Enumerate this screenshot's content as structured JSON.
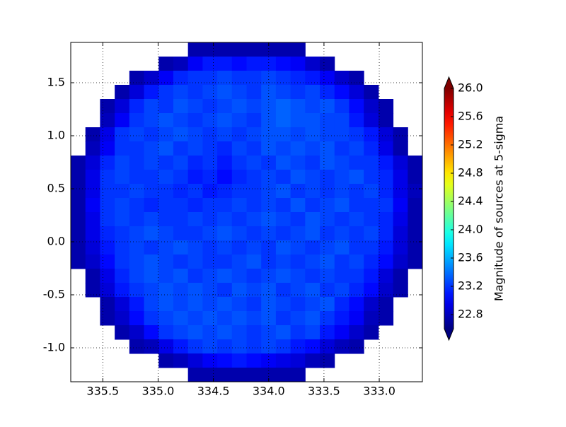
{
  "chart_data": {
    "type": "heatmap",
    "colormap": "jet",
    "grid": true,
    "xlim": [
      335.79,
      332.61
    ],
    "ylim": [
      1.88,
      -1.32
    ],
    "xticks": [
      335.5,
      {
        "value": 335,
        "label": "335.0"
      },
      334.5,
      {
        "value": 334,
        "label": "334.0"
      },
      333.5,
      {
        "value": 333,
        "label": "333.0"
      }
    ],
    "yticks": [
      1.5,
      {
        "value": 1,
        "label": "1.0"
      },
      0.5,
      {
        "value": 0,
        "label": "0.0"
      },
      -0.5,
      {
        "value": -1,
        "label": "-1.0"
      }
    ],
    "colorbar": {
      "label": "Magnitude of sources at 5-sigma",
      "clim": [
        22.6,
        26.0
      ],
      "extend": "both",
      "ticks": [
        22.8,
        23.2,
        23.6,
        {
          "value": 24,
          "label": "24.0"
        },
        24.4,
        24.8,
        25.2,
        25.6,
        {
          "value": 26,
          "label": "26.0"
        }
      ]
    },
    "values": [
      [
        null,
        null,
        null,
        null,
        null,
        null,
        null,
        null,
        22.75,
        22.75,
        22.75,
        22.75,
        22.75,
        22.75,
        22.75,
        22.75,
        null,
        null,
        null,
        null,
        null,
        null,
        null,
        null
      ],
      [
        null,
        null,
        null,
        null,
        null,
        null,
        22.75,
        22.8,
        23.0,
        23.1,
        23.1,
        23.05,
        23.1,
        23.1,
        23.05,
        23.0,
        22.85,
        22.75,
        null,
        null,
        null,
        null,
        null,
        null
      ],
      [
        null,
        null,
        null,
        null,
        22.75,
        22.85,
        23.0,
        23.15,
        23.2,
        23.2,
        23.25,
        23.2,
        23.2,
        23.25,
        23.2,
        23.15,
        23.1,
        23.0,
        22.85,
        22.75,
        null,
        null,
        null,
        null
      ],
      [
        null,
        null,
        null,
        22.75,
        22.9,
        23.1,
        23.2,
        23.25,
        23.2,
        23.25,
        23.3,
        23.25,
        23.2,
        23.3,
        23.25,
        23.2,
        23.25,
        23.15,
        23.05,
        22.9,
        22.75,
        null,
        null,
        null
      ],
      [
        null,
        null,
        22.75,
        22.9,
        23.15,
        23.25,
        23.2,
        23.3,
        23.25,
        23.2,
        23.25,
        23.3,
        23.25,
        23.3,
        23.35,
        23.3,
        23.25,
        23.3,
        23.2,
        23.05,
        22.85,
        22.75,
        null,
        null
      ],
      [
        null,
        null,
        22.8,
        23.0,
        23.2,
        23.25,
        23.3,
        23.25,
        23.2,
        23.25,
        23.3,
        23.25,
        23.2,
        23.3,
        23.35,
        23.3,
        23.3,
        23.25,
        23.25,
        23.1,
        22.9,
        22.75,
        null,
        null
      ],
      [
        null,
        22.75,
        22.95,
        23.2,
        23.25,
        23.2,
        23.25,
        23.3,
        23.25,
        23.2,
        23.25,
        23.2,
        23.25,
        23.3,
        23.3,
        23.25,
        23.3,
        23.25,
        23.25,
        23.2,
        23.1,
        22.9,
        22.75,
        null
      ],
      [
        null,
        22.8,
        23.0,
        23.2,
        23.2,
        23.25,
        23.3,
        23.2,
        23.25,
        23.2,
        23.15,
        23.25,
        23.2,
        23.3,
        23.25,
        23.3,
        23.25,
        23.3,
        23.2,
        23.25,
        23.15,
        22.95,
        22.75,
        null
      ],
      [
        22.75,
        22.9,
        23.15,
        23.25,
        23.2,
        23.25,
        23.2,
        23.25,
        23.15,
        23.2,
        23.1,
        23.2,
        23.25,
        23.2,
        23.3,
        23.25,
        23.2,
        23.3,
        23.25,
        23.2,
        23.2,
        23.1,
        22.9,
        22.75
      ],
      [
        22.75,
        22.95,
        23.2,
        23.25,
        23.2,
        23.2,
        23.25,
        23.2,
        23.1,
        23.15,
        23.05,
        23.15,
        23.2,
        23.25,
        23.2,
        23.3,
        23.25,
        23.2,
        23.25,
        23.3,
        23.2,
        23.15,
        22.95,
        22.75
      ],
      [
        22.75,
        22.95,
        23.2,
        23.2,
        23.25,
        23.2,
        23.2,
        23.15,
        23.2,
        23.1,
        23.15,
        23.2,
        23.2,
        23.25,
        23.3,
        23.2,
        23.25,
        23.2,
        23.25,
        23.2,
        23.25,
        23.15,
        22.95,
        22.8
      ],
      [
        22.75,
        23.0,
        23.2,
        23.25,
        23.2,
        23.15,
        23.2,
        23.2,
        23.15,
        23.2,
        23.2,
        23.25,
        23.2,
        23.25,
        23.2,
        23.3,
        23.2,
        23.25,
        23.3,
        23.2,
        23.2,
        23.2,
        23.0,
        22.75
      ],
      [
        22.75,
        22.95,
        23.2,
        23.25,
        23.2,
        23.25,
        23.2,
        23.2,
        23.25,
        23.2,
        23.25,
        23.2,
        23.25,
        23.3,
        23.25,
        23.2,
        23.3,
        23.25,
        23.2,
        23.25,
        23.2,
        23.15,
        22.95,
        22.75
      ],
      [
        22.75,
        22.95,
        23.15,
        23.2,
        23.25,
        23.3,
        23.25,
        23.2,
        23.2,
        23.25,
        23.3,
        23.25,
        23.2,
        23.25,
        23.2,
        23.25,
        23.3,
        23.2,
        23.25,
        23.2,
        23.25,
        23.15,
        22.9,
        22.75
      ],
      [
        22.75,
        22.9,
        23.1,
        23.2,
        23.25,
        23.2,
        23.25,
        23.3,
        23.25,
        23.2,
        23.25,
        23.2,
        23.25,
        23.2,
        23.3,
        23.25,
        23.2,
        23.25,
        23.3,
        23.2,
        23.2,
        23.1,
        22.9,
        22.75
      ],
      [
        22.75,
        22.85,
        23.05,
        23.2,
        23.25,
        23.3,
        23.25,
        23.2,
        23.25,
        23.2,
        23.2,
        23.25,
        23.3,
        23.2,
        23.25,
        23.2,
        23.25,
        23.3,
        23.2,
        23.25,
        23.15,
        23.05,
        22.85,
        22.75
      ],
      [
        null,
        22.75,
        22.95,
        23.15,
        23.25,
        23.3,
        23.25,
        23.3,
        23.2,
        23.25,
        23.3,
        23.25,
        23.2,
        23.25,
        23.3,
        23.25,
        23.2,
        23.25,
        23.2,
        23.2,
        23.1,
        22.9,
        22.75,
        null
      ],
      [
        null,
        22.75,
        22.9,
        23.1,
        23.2,
        23.25,
        23.3,
        23.25,
        23.3,
        23.25,
        23.2,
        23.3,
        23.25,
        23.3,
        23.2,
        23.25,
        23.3,
        23.2,
        23.25,
        23.15,
        23.05,
        22.85,
        22.75,
        null
      ],
      [
        null,
        null,
        22.75,
        22.9,
        23.1,
        23.25,
        23.3,
        23.25,
        23.3,
        23.25,
        23.3,
        23.25,
        23.2,
        23.3,
        23.25,
        23.2,
        23.25,
        23.3,
        23.15,
        23.05,
        22.85,
        22.75,
        null,
        null
      ],
      [
        null,
        null,
        22.75,
        22.85,
        23.05,
        23.2,
        23.25,
        23.3,
        23.25,
        23.3,
        23.25,
        23.3,
        23.25,
        23.3,
        23.2,
        23.25,
        23.3,
        23.2,
        23.1,
        23.0,
        22.8,
        22.75,
        null,
        null
      ],
      [
        null,
        null,
        null,
        22.75,
        22.85,
        23.05,
        23.2,
        23.25,
        23.3,
        23.25,
        23.3,
        23.25,
        23.2,
        23.25,
        23.3,
        23.2,
        23.25,
        23.1,
        23.0,
        22.85,
        22.75,
        null,
        null,
        null
      ],
      [
        null,
        null,
        null,
        null,
        22.75,
        22.8,
        22.95,
        23.1,
        23.2,
        23.25,
        23.2,
        23.25,
        23.2,
        23.25,
        23.2,
        23.1,
        23.05,
        22.9,
        22.8,
        22.75,
        null,
        null,
        null,
        null
      ],
      [
        null,
        null,
        null,
        null,
        null,
        null,
        22.75,
        22.8,
        22.9,
        23.0,
        23.05,
        23.1,
        23.05,
        23.0,
        22.95,
        22.9,
        22.8,
        22.75,
        null,
        null,
        null,
        null,
        null,
        null
      ],
      [
        null,
        null,
        null,
        null,
        null,
        null,
        null,
        null,
        22.75,
        22.75,
        22.75,
        22.75,
        22.75,
        22.75,
        22.75,
        22.75,
        null,
        null,
        null,
        null,
        null,
        null,
        null,
        null
      ]
    ]
  }
}
